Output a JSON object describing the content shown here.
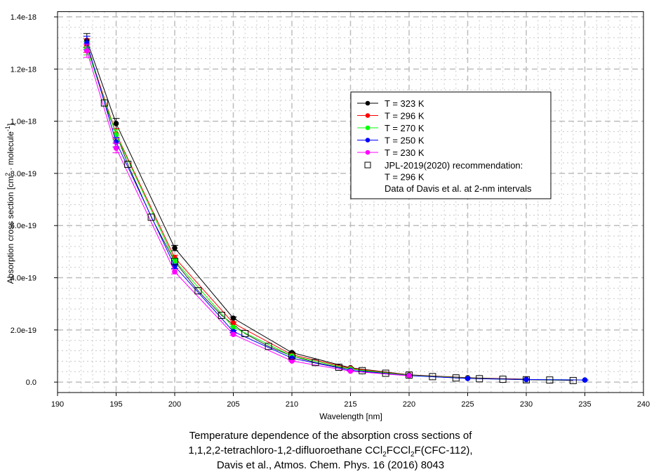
{
  "chart_data": {
    "type": "line",
    "xlabel": "Wavelength [nm]",
    "ylabel_parts": [
      "Absorption cross section [cm",
      "2",
      " · molecule",
      "-1",
      "]"
    ],
    "xlim": [
      190,
      240
    ],
    "ylim": [
      -4e-20,
      1.42e-18
    ],
    "xticks": [
      190,
      195,
      200,
      205,
      210,
      215,
      220,
      225,
      230,
      235,
      240
    ],
    "yticks": [
      0,
      2e-19,
      4e-19,
      6e-19,
      8e-19,
      1e-18,
      1.2e-18,
      1.4e-18
    ],
    "ytick_labels": [
      "0.0",
      "2.0e-19",
      "4.0e-19",
      "6.0e-19",
      "8.0e-19",
      "1.0e-18",
      "1.2e-18",
      "1.4e-18"
    ],
    "grid": true,
    "legend_position": "upper-right",
    "series": [
      {
        "name": "T = 323 K",
        "color": "#000000",
        "x": [
          192.5,
          195,
          200,
          205,
          210,
          215,
          220,
          225,
          230
        ],
        "y": [
          1.31e-18,
          9.91e-19,
          5.14e-19,
          2.45e-19,
          1.13e-19,
          5.5e-20,
          2.8e-20,
          1.7e-20,
          1.1e-20
        ]
      },
      {
        "name": "T = 296 K",
        "color": "#ff0000",
        "x": [
          192.5,
          195,
          200,
          205,
          210,
          215,
          220,
          225,
          230
        ],
        "y": [
          1.29e-18,
          9.52e-19,
          4.77e-19,
          2.26e-19,
          1.05e-19,
          5.3e-20,
          2.7e-20,
          1.6e-20,
          1.1e-20
        ]
      },
      {
        "name": "T = 270 K",
        "color": "#00ff00",
        "x": [
          192.5,
          195,
          200,
          205,
          210,
          215,
          220,
          225,
          230,
          235
        ],
        "y": [
          1.28e-18,
          9.48e-19,
          4.66e-19,
          2.1e-19,
          1e-19,
          5e-20,
          2.6e-20,
          1.5e-20,
          1e-20,
          8e-21
        ]
      },
      {
        "name": "T = 250 K",
        "color": "#0000ff",
        "x": [
          192.5,
          195,
          200,
          205,
          210,
          215,
          220,
          225,
          230,
          235
        ],
        "y": [
          1.3e-18,
          9.2e-19,
          4.44e-19,
          1.94e-19,
          9.2e-20,
          4.5e-20,
          2.5e-20,
          1.4e-20,
          1e-20,
          8e-21
        ]
      },
      {
        "name": "T = 230 K",
        "color": "#ff00ff",
        "x": [
          192.5,
          195,
          200,
          205,
          210,
          215,
          220
        ],
        "y": [
          1.27e-18,
          8.97e-19,
          4.23e-19,
          1.83e-19,
          8.1e-20,
          4.2e-20,
          2.4e-20
        ]
      }
    ],
    "reference": {
      "name_lines": [
        "JPL-2019(2020) recommendation:",
        "T = 296 K",
        "Data of Davis et al. at 2-nm intervals"
      ],
      "x": [
        194,
        196,
        198,
        200,
        202,
        204,
        206,
        208,
        210,
        212,
        214,
        216,
        218,
        220,
        222,
        224,
        226,
        228,
        230,
        232,
        234
      ],
      "y": [
        1.07e-18,
        8.35e-19,
        6.32e-19,
        4.62e-19,
        3.5e-19,
        2.56e-19,
        1.86e-19,
        1.37e-19,
        1e-19,
        7.5e-20,
        5.7e-20,
        4.4e-20,
        3.4e-20,
        2.7e-20,
        2.1e-20,
        1.6e-20,
        1.3e-20,
        1.1e-20,
        9e-21,
        8e-21,
        6e-21
      ]
    },
    "title_lines": {
      "line1": "Temperature dependence of the absorption cross sections of",
      "line2_parts": [
        "1,1,2,2-tetrachloro-1,2-difluoroethane CCl",
        "2",
        "FCCl",
        "2",
        "F(CFC-112),"
      ],
      "line3": "Davis et al., Atmos. Chem. Phys. 16 (2016) 8043"
    }
  }
}
